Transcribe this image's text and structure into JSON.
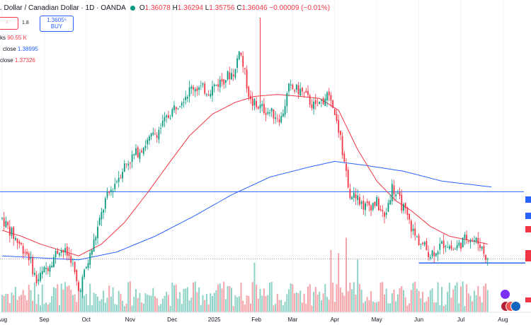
{
  "header": {
    "symbol": ". Dollar / Canadian Dollar · 1D · OANDA",
    "open_label": "O",
    "open": "1.36078",
    "high_label": "H",
    "high": "1.36294",
    "low_label": "L",
    "low": "1.35756",
    "close_label": "C",
    "close": "1.36046",
    "change": "−0.00009 (−0.01%)"
  },
  "trade": {
    "sell_price": "⁷",
    "spread": "1.8",
    "buy_price": "1.3605⁵",
    "buy_label": "BUY"
  },
  "indicators": [
    {
      "label": "ks",
      "value": "90.55 K",
      "color": "#f23645"
    },
    {
      "label": "close",
      "value": "1.38995",
      "color": "#2962ff"
    },
    {
      "label": "close",
      "value": "1.37326",
      "color": "#f23645"
    }
  ],
  "colors": {
    "up": "#089981",
    "down": "#f23645",
    "ma50": "#f23645",
    "ma200": "#2962ff",
    "level": "#2962ff"
  },
  "chart_data": {
    "type": "candlestick",
    "x_tick_labels": [
      "Aug",
      "Sep",
      "Oct",
      "Nov",
      "Dec",
      "2025",
      "Feb",
      "Mar",
      "Apr",
      "May",
      "Jun",
      "Jul",
      "Aug"
    ],
    "x_tick_positions_index": [
      0,
      22,
      44,
      67,
      89,
      111,
      133,
      152,
      174,
      196,
      218,
      240,
      262
    ],
    "ylim": [
      1.3305,
      1.4855
    ],
    "horizontal_levels": [
      1.3946,
      1.3584
    ],
    "last_price": 1.36046,
    "waypoints": [
      [
        0,
        1.381
      ],
      [
        6,
        1.372
      ],
      [
        14,
        1.362
      ],
      [
        18,
        1.349
      ],
      [
        24,
        1.357
      ],
      [
        30,
        1.366
      ],
      [
        36,
        1.361
      ],
      [
        40,
        1.344
      ],
      [
        46,
        1.362
      ],
      [
        54,
        1.39
      ],
      [
        64,
        1.408
      ],
      [
        72,
        1.416
      ],
      [
        82,
        1.426
      ],
      [
        92,
        1.44
      ],
      [
        100,
        1.448
      ],
      [
        108,
        1.446
      ],
      [
        116,
        1.452
      ],
      [
        122,
        1.456
      ],
      [
        124,
        1.468
      ],
      [
        130,
        1.44
      ],
      [
        138,
        1.436
      ],
      [
        146,
        1.432
      ],
      [
        150,
        1.447
      ],
      [
        156,
        1.446
      ],
      [
        164,
        1.437
      ],
      [
        170,
        1.444
      ],
      [
        176,
        1.426
      ],
      [
        182,
        1.394
      ],
      [
        190,
        1.387
      ],
      [
        196,
        1.389
      ],
      [
        200,
        1.381
      ],
      [
        204,
        1.397
      ],
      [
        210,
        1.386
      ],
      [
        216,
        1.372
      ],
      [
        224,
        1.363
      ],
      [
        232,
        1.369
      ],
      [
        236,
        1.365
      ],
      [
        244,
        1.372
      ],
      [
        250,
        1.368
      ],
      [
        254,
        1.36
      ]
    ],
    "ma50_waypoints": [
      [
        0,
        1.375
      ],
      [
        10,
        1.372
      ],
      [
        20,
        1.368
      ],
      [
        30,
        1.365
      ],
      [
        40,
        1.362
      ],
      [
        52,
        1.368
      ],
      [
        64,
        1.379
      ],
      [
        76,
        1.394
      ],
      [
        88,
        1.41
      ],
      [
        98,
        1.423
      ],
      [
        110,
        1.434
      ],
      [
        122,
        1.44
      ],
      [
        132,
        1.443
      ],
      [
        144,
        1.444
      ],
      [
        156,
        1.443
      ],
      [
        166,
        1.442
      ],
      [
        176,
        1.436
      ],
      [
        186,
        1.416
      ],
      [
        196,
        1.4
      ],
      [
        206,
        1.39
      ],
      [
        214,
        1.385
      ],
      [
        224,
        1.377
      ],
      [
        234,
        1.372
      ],
      [
        244,
        1.37
      ],
      [
        254,
        1.368
      ]
    ],
    "ma200_waypoints": [
      [
        0,
        1.362
      ],
      [
        20,
        1.361
      ],
      [
        40,
        1.36
      ],
      [
        60,
        1.364
      ],
      [
        80,
        1.372
      ],
      [
        100,
        1.382
      ],
      [
        120,
        1.393
      ],
      [
        140,
        1.402
      ],
      [
        160,
        1.407
      ],
      [
        174,
        1.41
      ],
      [
        190,
        1.408
      ],
      [
        210,
        1.405
      ],
      [
        230,
        1.4
      ],
      [
        256,
        1.397
      ]
    ],
    "volume_scale_max": 50,
    "volume_spikes": [
      [
        172,
        40
      ],
      [
        176,
        38
      ],
      [
        180,
        48
      ],
      [
        186,
        34
      ],
      [
        132,
        32
      ]
    ]
  }
}
